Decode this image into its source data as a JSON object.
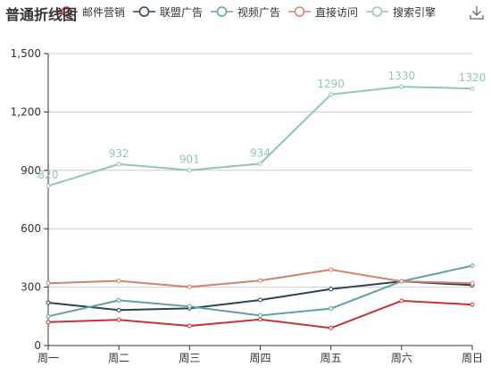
{
  "chart_data": {
    "type": "line",
    "title": "普通折线图",
    "categories": [
      "周一",
      "周二",
      "周三",
      "周四",
      "周五",
      "周六",
      "周日"
    ],
    "ylim": [
      0,
      1500
    ],
    "yticks": [
      0,
      300,
      600,
      900,
      1200,
      1500
    ],
    "ytick_labels": [
      "0",
      "300",
      "600",
      "900",
      "1,200",
      "1,500"
    ],
    "grid": true,
    "legend_position": "top",
    "series": [
      {
        "name": "邮件营销",
        "color": "#c23531",
        "values": [
          120,
          132,
          101,
          134,
          90,
          230,
          210
        ],
        "labels": false
      },
      {
        "name": "联盟广告",
        "color": "#2f4554",
        "values": [
          220,
          182,
          191,
          234,
          290,
          330,
          310
        ],
        "labels": false
      },
      {
        "name": "视频广告",
        "color": "#61a0a8",
        "values": [
          150,
          232,
          201,
          154,
          190,
          330,
          410
        ],
        "labels": false
      },
      {
        "name": "直接访问",
        "color": "#d48265",
        "values": [
          320,
          332,
          301,
          334,
          390,
          330,
          320
        ],
        "labels": false
      },
      {
        "name": "搜索引擎",
        "color": "#91c7ae",
        "values": [
          820,
          932,
          901,
          934,
          1290,
          1330,
          1320
        ],
        "labels": true
      }
    ]
  },
  "toolbar": {
    "download_icon": "download-icon"
  }
}
